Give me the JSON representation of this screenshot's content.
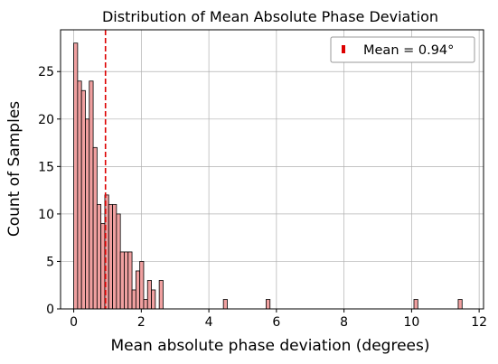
{
  "chart_data": {
    "type": "bar",
    "title": "Distribution of Mean Absolute Phase Deviation",
    "xlabel": "Mean absolute phase deviation (degrees)",
    "ylabel": "Count of Samples",
    "xlim": [
      -0.39,
      12.13
    ],
    "ylim": [
      0,
      29.4
    ],
    "xticks": [
      0,
      2,
      4,
      6,
      8,
      10,
      12
    ],
    "yticks": [
      0,
      5,
      10,
      15,
      20,
      25
    ],
    "grid": true,
    "legend_position": "top-right",
    "bin_width": 0.115,
    "bin_start": 0.0,
    "bins": [
      {
        "x": 0.0575,
        "count": 28
      },
      {
        "x": 0.1725,
        "count": 24
      },
      {
        "x": 0.2875,
        "count": 23
      },
      {
        "x": 0.4025,
        "count": 20
      },
      {
        "x": 0.5175,
        "count": 24
      },
      {
        "x": 0.6325,
        "count": 17
      },
      {
        "x": 0.7475,
        "count": 11
      },
      {
        "x": 0.8625,
        "count": 9
      },
      {
        "x": 0.9775,
        "count": 12
      },
      {
        "x": 1.0925,
        "count": 11
      },
      {
        "x": 1.2075,
        "count": 11
      },
      {
        "x": 1.3225,
        "count": 10
      },
      {
        "x": 1.4375,
        "count": 6
      },
      {
        "x": 1.5525,
        "count": 6
      },
      {
        "x": 1.6675,
        "count": 6
      },
      {
        "x": 1.7825,
        "count": 2
      },
      {
        "x": 1.8975,
        "count": 4
      },
      {
        "x": 2.0125,
        "count": 5
      },
      {
        "x": 2.1275,
        "count": 1
      },
      {
        "x": 2.2425,
        "count": 3
      },
      {
        "x": 2.3575,
        "count": 2
      },
      {
        "x": 2.5875,
        "count": 3
      },
      {
        "x": 4.4875,
        "count": 1
      },
      {
        "x": 5.7525,
        "count": 1
      },
      {
        "x": 10.1275,
        "count": 1
      },
      {
        "x": 11.4375,
        "count": 1
      }
    ],
    "mean": 0.94,
    "mean_label": "Mean = 0.94°",
    "colors": {
      "bar_fill": "#f0a0a0",
      "bar_edge": "#000000",
      "mean_line": "#dd0000",
      "grid": "#b0b0b0"
    }
  }
}
